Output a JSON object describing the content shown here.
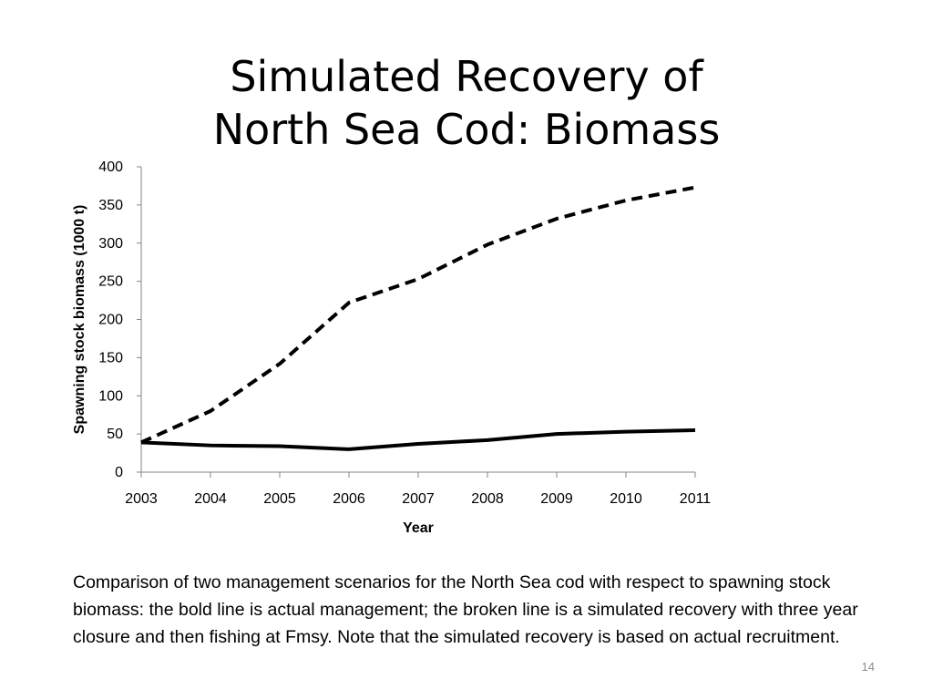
{
  "slide": {
    "title_line1": "Simulated Recovery of",
    "title_line2": "North Sea Cod: Biomass",
    "caption": "Comparison of two management scenarios for the North Sea cod with respect to spawning stock biomass: the bold line is actual management; the broken line is a simulated recovery with three year closure and then fishing at Fmsy. Note that the simulated recovery is based on actual recruitment.",
    "slide_number": "14"
  },
  "chart_data": {
    "type": "line",
    "title": "",
    "xlabel": "Year",
    "ylabel": "Spawning stock biomass (1000 t)",
    "x": [
      "2003",
      "2004",
      "2005",
      "2006",
      "2007",
      "2008",
      "2009",
      "2010",
      "2011"
    ],
    "ylim": [
      0,
      400
    ],
    "yticks": [
      0,
      50,
      100,
      150,
      200,
      250,
      300,
      350,
      400
    ],
    "grid": false,
    "legend": "none",
    "series": [
      {
        "style": "solid-bold",
        "color": "#000000",
        "values": [
          39,
          35,
          34,
          30,
          37,
          42,
          50,
          53,
          55
        ]
      },
      {
        "style": "dashed-bold",
        "color": "#000000",
        "values": [
          39,
          80,
          142,
          222,
          253,
          298,
          332,
          356,
          373
        ]
      }
    ]
  }
}
